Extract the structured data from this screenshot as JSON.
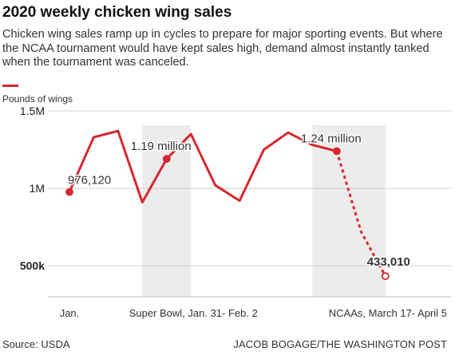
{
  "title": "2020 weekly chicken wing sales",
  "subtitle": "Chicken wing sales ramp up in cycles to prepare for major sporting events. But where the NCAA tournament would have kept sales high, demand almost instantly tanked when the tournament was canceled.",
  "source": "Source: USDA",
  "credit": "JACOB BOGAGE/THE WASHINGTON POST",
  "colors": {
    "line": "#d7272e",
    "shade": "#ececec",
    "grid": "#d0d0d0"
  },
  "chart_data": {
    "type": "line",
    "title": "2020 weekly chicken wing sales",
    "ylabel": "Pounds of wings",
    "ylim": [
      300000,
      1500000
    ],
    "yticks": [
      {
        "value": 1500000,
        "label": "1.5M"
      },
      {
        "value": 1000000,
        "label": "1M"
      },
      {
        "value": 500000,
        "label": "500k"
      }
    ],
    "x_start": 0,
    "x_end": 13.5,
    "x_labels": [
      {
        "x": 0,
        "label": "Jan."
      },
      {
        "x": 5.1,
        "label": "Super Bowl, Jan. 31- Feb. 2"
      },
      {
        "x": 13.1,
        "label": "NCAAs, March 17- April 5"
      }
    ],
    "shaded_ranges": [
      {
        "from": 3,
        "to": 5
      },
      {
        "from": 10,
        "to": 13
      }
    ],
    "series": [
      {
        "values": [
          976120,
          1330000,
          1370000,
          910000,
          1190000,
          1350000,
          1020000,
          920000,
          1250000,
          1360000,
          1280000,
          1240000,
          720000,
          433010
        ]
      }
    ],
    "dashed_from_index": 11,
    "annotations": [
      {
        "index": 0,
        "label": "976,120",
        "bold": false
      },
      {
        "index": 4,
        "label": "1.19 million",
        "bold": false
      },
      {
        "index": 11,
        "label": "1.24 million",
        "bold": false
      },
      {
        "index": 13,
        "label": "433,010",
        "bold": true
      }
    ]
  }
}
